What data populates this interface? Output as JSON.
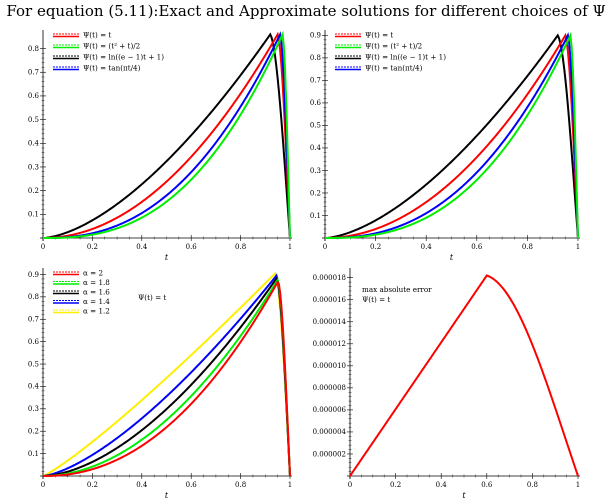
{
  "title": "For equation (5.11):Exact and Approximate solutions for different choices of Ψ",
  "xticks": [
    "0",
    "0.2",
    "0.4",
    "0.6",
    "0.8",
    "1"
  ],
  "colors": {
    "black": "#000000",
    "red": "#ff0000",
    "green": "#00ee00",
    "blue": "#0000ff",
    "yellow": "#ffee00"
  },
  "chart_data": [
    {
      "type": "line",
      "xlabel": "t",
      "xlim": [
        0,
        1
      ],
      "ylim": [
        0,
        0.87
      ],
      "yticks": [
        "0.1",
        "0.2",
        "0.3",
        "0.4",
        "0.5",
        "0.6",
        "0.7",
        "0.8"
      ],
      "legend": [
        {
          "label": "Ψ(t) = t",
          "colors": [
            "#ff0000",
            "#ff0000"
          ],
          "dashed": true
        },
        {
          "label": "Ψ(t) = (t² + t)/2",
          "colors": [
            "#00ee00",
            "#00ee00"
          ],
          "dashed": true
        },
        {
          "label": "Ψ(t) = ln((e − 1)t + 1)",
          "colors": [
            "#000000",
            "#000000"
          ],
          "dashed": true
        },
        {
          "label": "Ψ(t) = tan(πt/4)",
          "colors": [
            "#0000ff",
            "#0000ff"
          ],
          "dashed": true
        }
      ],
      "series": [
        {
          "name": "Ψ(t) = ln((e − 1)t + 1)",
          "color": "#000000",
          "peak_x": 0.92,
          "peak_y": 0.86,
          "p": 1.6
        },
        {
          "name": "Ψ(t) = t",
          "color": "#ff0000",
          "peak_x": 0.95,
          "peak_y": 0.86,
          "p": 2.0
        },
        {
          "name": "Ψ(t) = tan(πt/4)",
          "color": "#0000ff",
          "peak_x": 0.96,
          "peak_y": 0.86,
          "p": 2.4
        },
        {
          "name": "Ψ(t) = (t² + t)/2",
          "color": "#00ee00",
          "peak_x": 0.97,
          "peak_y": 0.86,
          "p": 2.6
        }
      ]
    },
    {
      "type": "line",
      "xlabel": "t",
      "xlim": [
        0,
        1
      ],
      "ylim": [
        0,
        0.915
      ],
      "yticks": [
        "0.1",
        "0.2",
        "0.3",
        "0.4",
        "0.5",
        "0.6",
        "0.7",
        "0.8",
        "0.9"
      ],
      "legend": [
        {
          "label": "Ψ(t) = t",
          "colors": [
            "#ff0000",
            "#ff0000"
          ],
          "dashed": true
        },
        {
          "label": "Ψ(t) = (t² + t)/2",
          "colors": [
            "#00ee00",
            "#00ee00"
          ],
          "dashed": true
        },
        {
          "label": "Ψ(t) = ln((e − 1)t + 1)",
          "colors": [
            "#000000",
            "#000000"
          ],
          "dashed": true
        },
        {
          "label": "Ψ(t) = tan(πt/4)",
          "colors": [
            "#0000ff",
            "#0000ff"
          ],
          "dashed": true
        }
      ],
      "series": [
        {
          "name": "Ψ(t) = ln((e − 1)t + 1)",
          "color": "#000000",
          "peak_x": 0.92,
          "peak_y": 0.9,
          "p": 1.6
        },
        {
          "name": "Ψ(t) = t",
          "color": "#ff0000",
          "peak_x": 0.95,
          "peak_y": 0.9,
          "p": 2.0
        },
        {
          "name": "Ψ(t) = tan(πt/4)",
          "color": "#0000ff",
          "peak_x": 0.96,
          "peak_y": 0.9,
          "p": 2.4
        },
        {
          "name": "Ψ(t) = (t² + t)/2",
          "color": "#00ee00",
          "peak_x": 0.97,
          "peak_y": 0.9,
          "p": 2.6
        }
      ]
    },
    {
      "type": "line",
      "xlabel": "t",
      "xlim": [
        0,
        1
      ],
      "ylim": [
        0,
        0.92
      ],
      "yticks": [
        "0.1",
        "0.2",
        "0.3",
        "0.4",
        "0.5",
        "0.6",
        "0.7",
        "0.8",
        "0.9"
      ],
      "annotation": "Ψ(t) = t",
      "legend": [
        {
          "label": "α = 2",
          "colors": [
            "#ff0000",
            "#ff0000"
          ],
          "dashed": true
        },
        {
          "label": "α = 1.8",
          "colors": [
            "#00ee00",
            "#00ee00"
          ],
          "dashed": true
        },
        {
          "label": "α = 1.6",
          "colors": [
            "#000000",
            "#000000"
          ],
          "dashed": true
        },
        {
          "label": "α = 1.4",
          "colors": [
            "#0000ff",
            "#0000ff"
          ],
          "dashed": true
        },
        {
          "label": "α = 1.2",
          "colors": [
            "#ffee00",
            "#ffee00"
          ],
          "dashed": true
        }
      ],
      "series": [
        {
          "name": "α = 1.2",
          "color": "#ffee00",
          "peak_x": 0.94,
          "peak_y": 0.905,
          "p": 1.15
        },
        {
          "name": "α = 1.4",
          "color": "#0000ff",
          "peak_x": 0.945,
          "peak_y": 0.895,
          "p": 1.45
        },
        {
          "name": "α = 1.6",
          "color": "#000000",
          "peak_x": 0.947,
          "peak_y": 0.885,
          "p": 1.7
        },
        {
          "name": "α = 1.8",
          "color": "#00ee00",
          "peak_x": 0.95,
          "peak_y": 0.875,
          "p": 1.95
        },
        {
          "name": "α = 2",
          "color": "#ff0000",
          "peak_x": 0.952,
          "peak_y": 0.87,
          "p": 2.15
        }
      ]
    },
    {
      "type": "line",
      "xlabel": "t",
      "xlim": [
        0,
        1
      ],
      "ylim": [
        0,
        1.87e-05
      ],
      "yticks": [
        "0.000002",
        "0.000004",
        "0.000006",
        "0.000008",
        "0.000010",
        "0.000012",
        "0.000014",
        "0.000016",
        "0.000018"
      ],
      "annotation": [
        "max absolute error",
        "Ψ(t) = t"
      ],
      "series": [
        {
          "name": "max absolute error",
          "color": "#ff0000",
          "peak_x": 0.6,
          "peak_y": 1.82e-05,
          "p": 1.0
        }
      ]
    }
  ]
}
